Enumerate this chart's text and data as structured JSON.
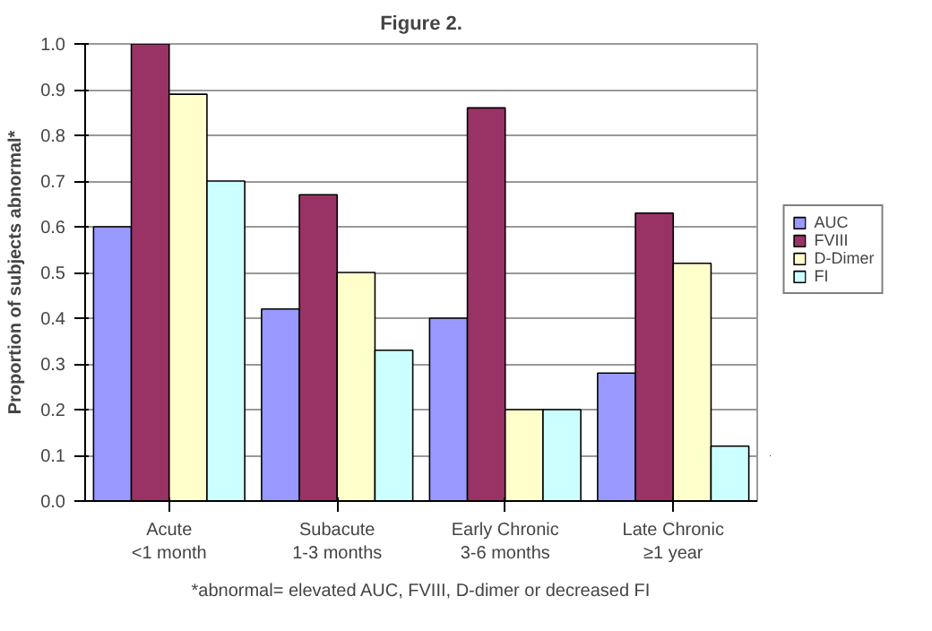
{
  "chart_data": {
    "type": "bar",
    "title": "Figure 2.",
    "ylabel": "Proportion of subjects abnormal*",
    "categories": [
      "Acute\n<1 month",
      "Subacute\n1-3 months",
      "Early Chronic\n3-6 months",
      "Late Chronic\n≥1 year"
    ],
    "series": [
      {
        "name": "AUC",
        "color": "#9999ff",
        "values": [
          0.6,
          0.42,
          0.4,
          0.28
        ]
      },
      {
        "name": "FVIII",
        "color": "#993366",
        "values": [
          1.0,
          0.67,
          0.86,
          0.63
        ]
      },
      {
        "name": "D-Dimer",
        "color": "#ffffcc",
        "values": [
          0.89,
          0.5,
          0.2,
          0.52
        ]
      },
      {
        "name": "FI",
        "color": "#ccffff",
        "values": [
          0.7,
          0.33,
          0.2,
          0.12
        ]
      }
    ],
    "ylim": [
      0,
      1.0
    ],
    "yticks": [
      "0.0",
      0.1,
      0.2,
      0.3,
      0.4,
      0.5,
      0.6,
      0.7,
      0.8,
      0.9,
      "1.0"
    ],
    "grid": "y",
    "legend": "right",
    "annotations": [
      "*abnormal= elevated AUC, FVIII, D-dimer or decreased FI"
    ]
  }
}
